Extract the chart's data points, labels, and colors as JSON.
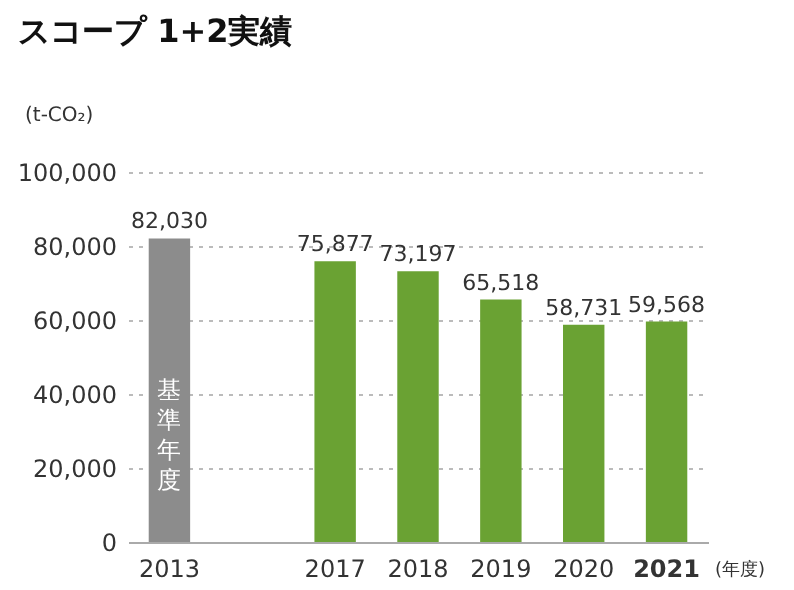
{
  "chart_data": {
    "type": "bar",
    "title": "スコープ 1+2実績",
    "ylabel": "(t-CO₂)",
    "xlabel": "(年度)",
    "categories": [
      "2013",
      null,
      "2017",
      "2018",
      "2019",
      "2020",
      "2021"
    ],
    "values": [
      82030,
      null,
      75877,
      73197,
      65518,
      58731,
      59568
    ],
    "colors": [
      "#8c8c8c",
      null,
      "#6aa233",
      "#6aa233",
      "#6aa233",
      "#6aa233",
      "#6aa233"
    ],
    "value_labels": [
      "82,030",
      null,
      "75,877",
      "73,197",
      "65,518",
      "58,731",
      "59,568"
    ],
    "ylim": [
      0,
      100000
    ],
    "yticks": [
      {
        "value": 0,
        "label": "0"
      },
      {
        "value": 20000,
        "label": "20,000"
      },
      {
        "value": 40000,
        "label": "40,000"
      },
      {
        "value": 60000,
        "label": "60,000"
      },
      {
        "value": 80000,
        "label": "80,000"
      },
      {
        "value": 100000,
        "label": "100,000"
      }
    ],
    "grid": "y",
    "annotations": [
      "基準年度"
    ]
  }
}
